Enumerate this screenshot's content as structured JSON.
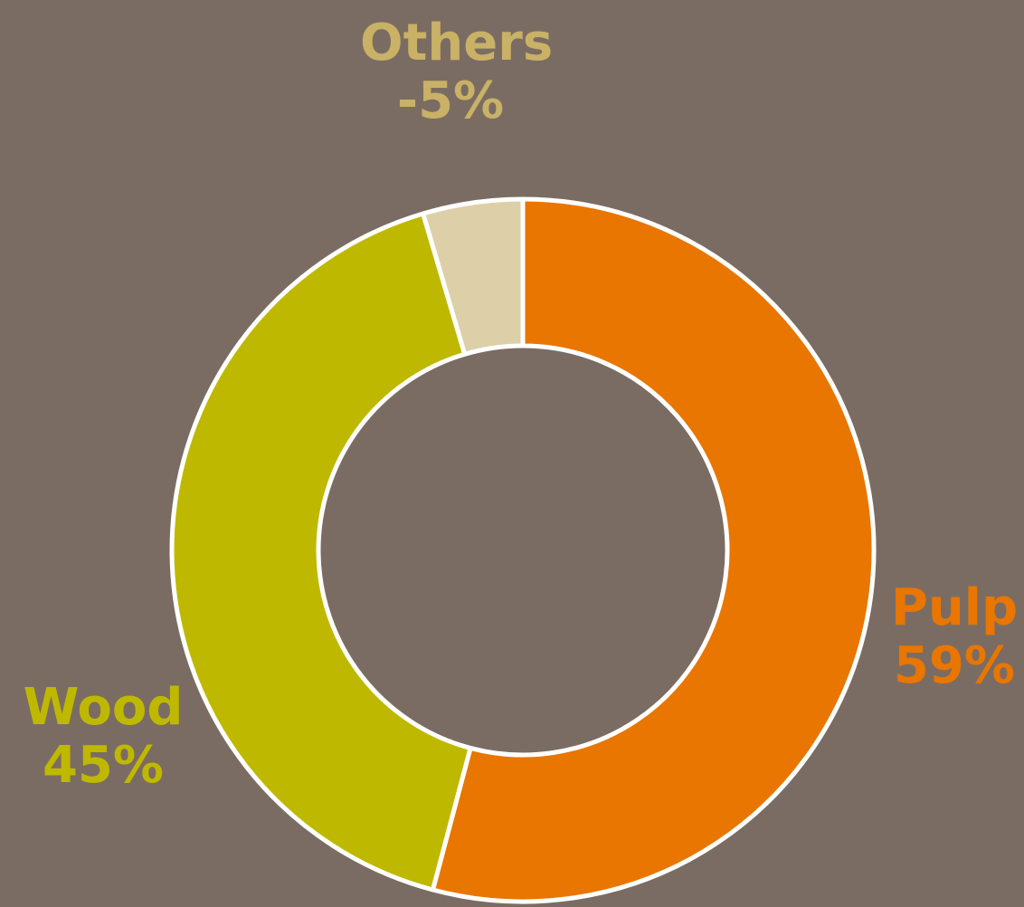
{
  "chart_data": {
    "type": "pie",
    "title": "",
    "slices": [
      {
        "name": "Pulp",
        "value": 59,
        "display": "59%",
        "color": "#e87600"
      },
      {
        "name": "Wood",
        "value": 45,
        "display": "45%",
        "color": "#bfb800"
      },
      {
        "name": "Others",
        "value": -5,
        "display": "-5%",
        "color": "#ddd0a8",
        "label_color": "#c9b166"
      }
    ],
    "donut": true,
    "start_angle_deg": 0,
    "direction": "clockwise",
    "legend": "none"
  }
}
